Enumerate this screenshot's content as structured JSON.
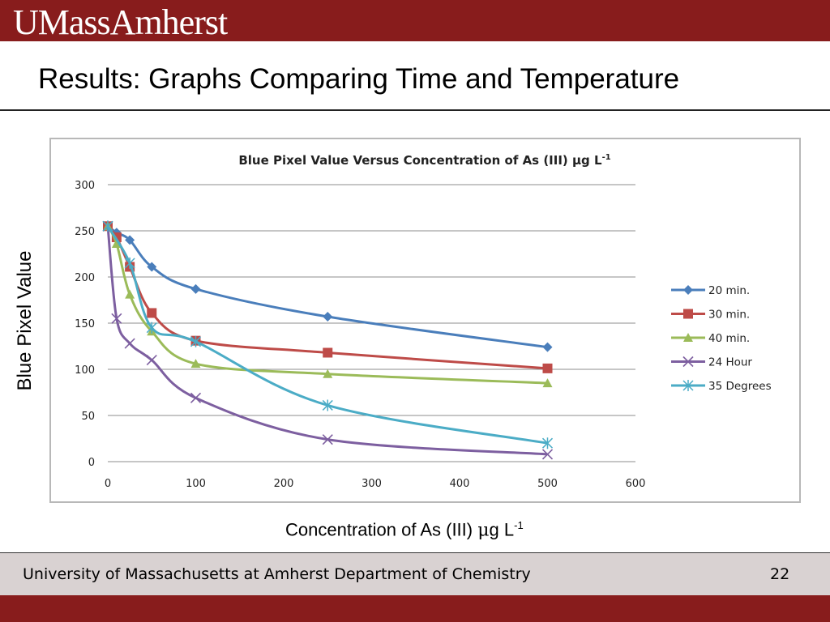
{
  "header": {
    "logo_text": "UMassAmherst"
  },
  "slide": {
    "title": "Results: Graphs Comparing Time and Temperature",
    "xlabel_main": "Concentration of As (III) ",
    "xlabel_mu": "μ",
    "xlabel_rest": "g L",
    "xlabel_sup": "-1",
    "ylabel": "Blue Pixel Value"
  },
  "footer": {
    "text": "University of Massachusetts at Amherst Department of Chemistry",
    "page": "22"
  },
  "colors": {
    "brand": "#881c1c",
    "footer_band": "#d9d2d2"
  },
  "chart_data": {
    "type": "line",
    "title": "Blue Pixel Value Versus Concentration of As (III) μg L-1",
    "title_main": "Blue Pixel Value Versus Concentration of As (III) μg L",
    "title_sup": "-1",
    "xlim": [
      0,
      600
    ],
    "ylim": [
      0,
      300
    ],
    "x_ticks": [
      0,
      100,
      200,
      300,
      400,
      500,
      600
    ],
    "y_ticks": [
      0,
      50,
      100,
      150,
      200,
      250,
      300
    ],
    "grid": "horizontal",
    "legend_position": "right",
    "series": [
      {
        "name": "20 min.",
        "color": "#4a7ebb",
        "marker": "diamond",
        "points": [
          [
            0,
            255
          ],
          [
            10,
            248
          ],
          [
            25,
            240
          ],
          [
            50,
            211
          ],
          [
            100,
            187
          ],
          [
            250,
            157
          ],
          [
            500,
            124
          ]
        ]
      },
      {
        "name": "30 min.",
        "color": "#be4b48",
        "marker": "square",
        "points": [
          [
            0,
            255
          ],
          [
            10,
            243
          ],
          [
            25,
            211
          ],
          [
            50,
            161
          ],
          [
            100,
            131
          ],
          [
            250,
            118
          ],
          [
            500,
            101
          ]
        ]
      },
      {
        "name": "40 min.",
        "color": "#9bbb59",
        "marker": "triangle",
        "points": [
          [
            0,
            255
          ],
          [
            10,
            236
          ],
          [
            25,
            181
          ],
          [
            50,
            141
          ],
          [
            100,
            106
          ],
          [
            250,
            95
          ],
          [
            500,
            85
          ]
        ]
      },
      {
        "name": "24 Hour",
        "color": "#7d5fa0",
        "marker": "x",
        "points": [
          [
            0,
            255
          ],
          [
            10,
            155
          ],
          [
            25,
            128
          ],
          [
            50,
            110
          ],
          [
            100,
            69
          ],
          [
            250,
            24
          ],
          [
            500,
            8
          ]
        ]
      },
      {
        "name": "35 Degrees",
        "color": "#4bacc6",
        "marker": "star",
        "points": [
          [
            0,
            255
          ],
          [
            25,
            215
          ],
          [
            50,
            145
          ],
          [
            100,
            130
          ],
          [
            250,
            61
          ],
          [
            500,
            20
          ]
        ]
      }
    ]
  }
}
